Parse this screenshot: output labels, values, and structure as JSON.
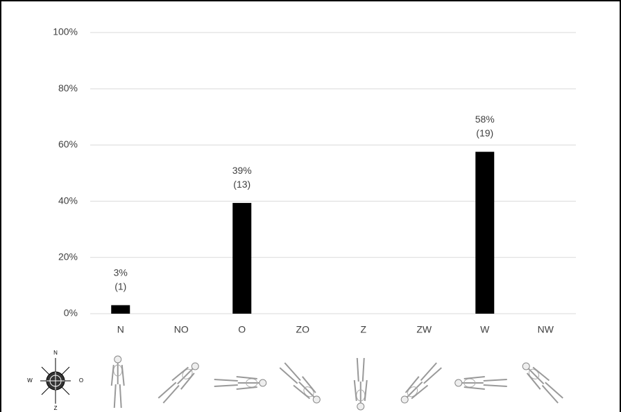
{
  "chart_data": {
    "type": "bar",
    "categories": [
      "N",
      "NO",
      "O",
      "ZO",
      "Z",
      "ZW",
      "W",
      "NW"
    ],
    "values": [
      3.03,
      0,
      39.39,
      0,
      0,
      0,
      57.58,
      0
    ],
    "value_labels": [
      "3%",
      null,
      "39%",
      null,
      null,
      null,
      "58%",
      null
    ],
    "count_labels": [
      "(1)",
      null,
      "(13)",
      null,
      null,
      null,
      "(19)",
      null
    ],
    "color": "#000000",
    "ylim": [
      0,
      100
    ],
    "yticks": [
      {
        "value": 0,
        "label": "0%"
      },
      {
        "value": 20,
        "label": "20%"
      },
      {
        "value": 40,
        "label": "40%"
      },
      {
        "value": 60,
        "label": "60%"
      },
      {
        "value": 80,
        "label": "80%"
      },
      {
        "value": 100,
        "label": "100%"
      }
    ],
    "grid": true,
    "compass": {
      "north": "N",
      "east": "O",
      "south": "Z",
      "west": "W"
    }
  }
}
